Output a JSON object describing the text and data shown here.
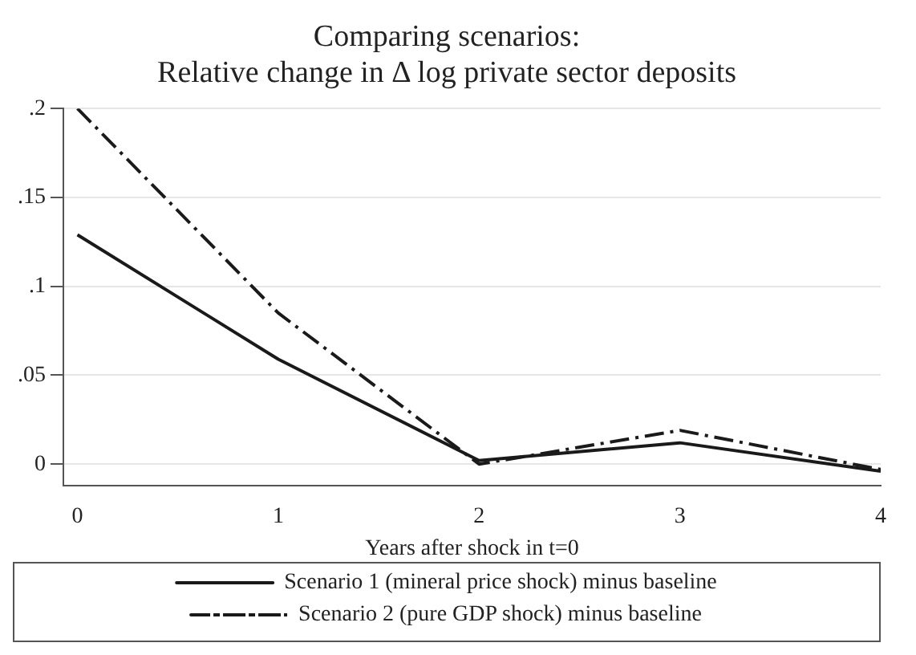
{
  "chart_data": {
    "type": "line",
    "title": "Comparing scenarios:\nRelative change in Δ log private sector deposits",
    "xlabel": "Years after shock in t=0",
    "x": [
      0,
      1,
      2,
      3,
      4
    ],
    "series": [
      {
        "name": "Scenario 1 (mineral price shock) minus baseline",
        "color": "#1a1a1a",
        "line_style": "solid",
        "values": [
          0.129,
          0.059,
          0.002,
          0.012,
          -0.004
        ]
      },
      {
        "name": "Scenario 2 (pure GDP shock) minus baseline",
        "color": "#1a1a1a",
        "line_style": "dashed",
        "values": [
          0.2,
          0.085,
          0.0,
          0.019,
          -0.003
        ]
      }
    ],
    "xlim": [
      -0.07,
      4
    ],
    "xticks": [
      0,
      1,
      2,
      3,
      4
    ],
    "ylim": [
      -0.012,
      0.2
    ],
    "yticks": [
      0,
      {
        "value": 0.05,
        "label": ".05"
      },
      {
        "value": 0.1,
        "label": ".1"
      },
      {
        "value": 0.15,
        "label": ".15"
      },
      {
        "value": 0.2,
        "label": ".2"
      }
    ],
    "grid": "y",
    "legend": "bottom",
    "marker": "none"
  }
}
